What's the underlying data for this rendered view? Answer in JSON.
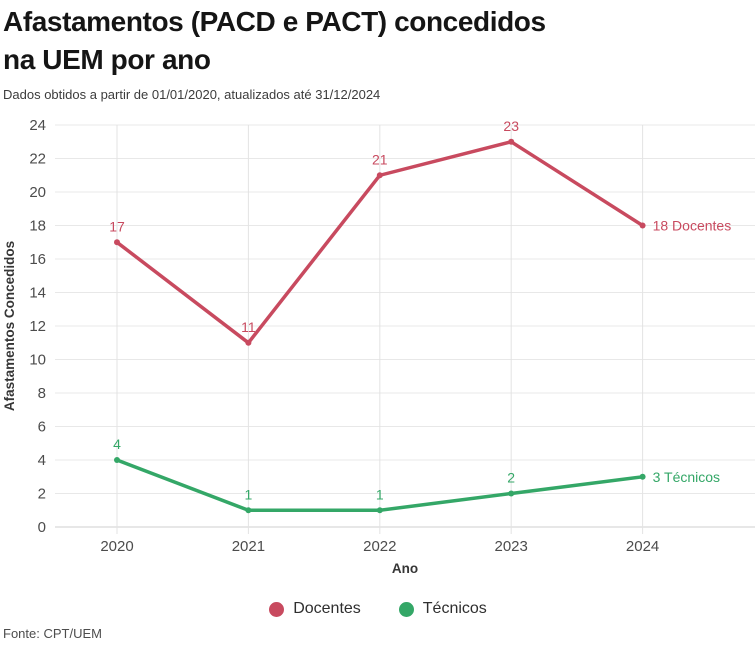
{
  "header": {
    "title": "Afastamentos (PACD e PACT) concedidos\nna UEM por ano",
    "subtitle": "Dados obtidos a partir de 01/01/2020, atualizados até 31/12/2024"
  },
  "chart_data": {
    "type": "line",
    "title": "Afastamentos (PACD e PACT) concedidos na UEM por ano",
    "categories": [
      "2020",
      "2021",
      "2022",
      "2023",
      "2024"
    ],
    "series": [
      {
        "name": "Docentes",
        "values": [
          17,
          11,
          21,
          23,
          18
        ],
        "color": "#c84a5f",
        "end_label": "18 Docentes"
      },
      {
        "name": "Técnicos",
        "values": [
          4,
          1,
          1,
          2,
          3
        ],
        "color": "#34a767",
        "end_label": "3 Técnicos"
      }
    ],
    "xlabel": "Ano",
    "ylabel": "Afastamentos Concedidos",
    "ylim": [
      0,
      24
    ],
    "ytick_step": 2,
    "grid": true,
    "legend_position": "bottom",
    "colors": {
      "grid_line": "#e8e8e8",
      "grid_line_vertical": "#e3e3e3",
      "baseline": "#cfcfcf"
    }
  },
  "footer": {
    "source": "Fonte: CPT/UEM"
  }
}
